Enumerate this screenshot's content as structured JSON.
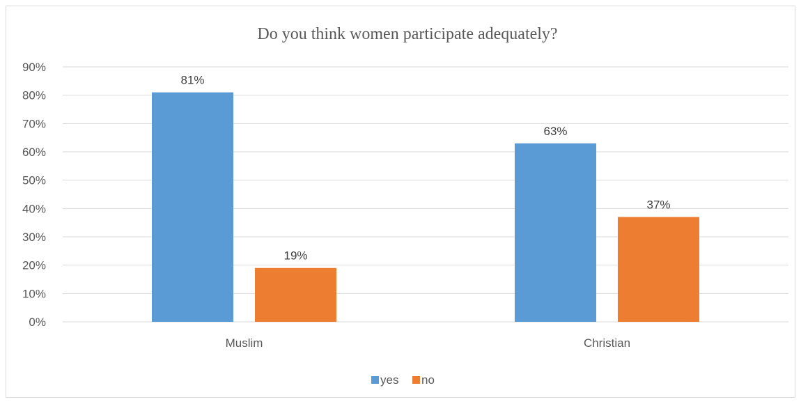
{
  "chart_data": {
    "type": "bar",
    "title": "Do you think women participate adequately?",
    "categories": [
      "Muslim",
      "Christian"
    ],
    "series": [
      {
        "name": "yes",
        "values": [
          81,
          63
        ],
        "labels": [
          "81%",
          "63%"
        ],
        "color": "#5b9bd5"
      },
      {
        "name": "no",
        "values": [
          19,
          37
        ],
        "labels": [
          "19%",
          "37%"
        ],
        "color": "#ed7d31"
      }
    ],
    "yticks": [
      "0%",
      "10%",
      "20%",
      "30%",
      "40%",
      "50%",
      "60%",
      "70%",
      "80%",
      "90%"
    ],
    "ylim": [
      0,
      90
    ],
    "grid": true,
    "legend_position": "bottom"
  }
}
